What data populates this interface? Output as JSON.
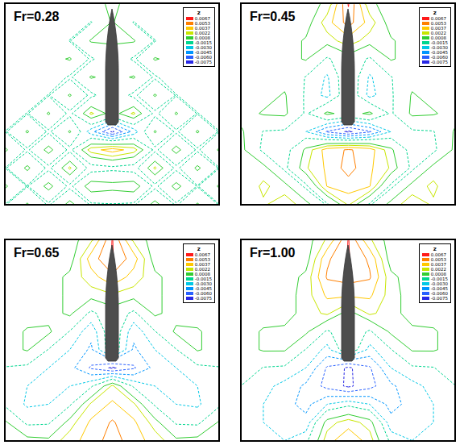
{
  "chart_data": [
    {
      "type": "contour",
      "title": "Fr=0.28",
      "legend_title": "z",
      "legend": "top-right",
      "tick_labels": false,
      "levels": [
        0.0067,
        0.0053,
        0.0037,
        0.0022,
        0.0008,
        -0.0015,
        {
          "value": -0.003,
          "label": "-0.0030"
        },
        -0.0045,
        {
          "value": -0.006,
          "label": "-0.0060"
        },
        -0.0075
      ],
      "colors": [
        "#ff1a1a",
        "#ff8000",
        "#ffc800",
        "#c8e600",
        "#32cd32",
        "#00d68f",
        "#00c8e6",
        "#0096ff",
        "#2860ff",
        "#2828e6"
      ],
      "z": [
        [
          0,
          0,
          0,
          0,
          0,
          0.0012,
          0,
          0,
          0,
          0,
          0
        ],
        [
          0,
          0,
          0,
          0,
          -0.0016,
          0.001,
          -0.0016,
          0,
          0,
          0,
          0
        ],
        [
          0,
          0,
          0,
          -0.0016,
          0.001,
          0.001,
          0.001,
          -0.0016,
          0,
          0,
          0
        ],
        [
          0,
          0,
          0,
          0.001,
          -0.0018,
          0,
          -0.0018,
          0.001,
          0,
          0,
          0
        ],
        [
          0,
          0,
          0,
          -0.0018,
          0.001,
          0,
          0.001,
          -0.0018,
          0,
          0,
          0
        ],
        [
          0,
          0,
          -0.0016,
          0.001,
          -0.002,
          0,
          -0.002,
          0.001,
          -0.0016,
          0,
          0
        ],
        [
          0,
          -0.0016,
          0.001,
          -0.002,
          0.0025,
          0,
          0.0025,
          -0.002,
          0.001,
          -0.0016,
          0
        ],
        [
          -0.0016,
          0.001,
          -0.0018,
          0.001,
          -0.004,
          -0.0078,
          -0.004,
          0.001,
          -0.0018,
          0.001,
          -0.0016
        ],
        [
          0.001,
          -0.0018,
          0.0015,
          -0.002,
          0.003,
          0.0045,
          0.003,
          -0.002,
          0.0015,
          -0.0018,
          0.001
        ],
        [
          -0.0016,
          0.0012,
          -0.002,
          0.0025,
          -0.0025,
          -0.002,
          -0.0025,
          0.0025,
          -0.002,
          0.0012,
          -0.0016
        ],
        [
          0.001,
          -0.0016,
          0.0015,
          -0.002,
          0.002,
          0.0015,
          0.002,
          -0.002,
          0.0015,
          -0.0016,
          0.001
        ],
        [
          -0.0016,
          0.001,
          -0.0018,
          0.0015,
          -0.0018,
          -0.0016,
          -0.0018,
          0.0015,
          -0.0018,
          0.001,
          -0.0016
        ]
      ]
    },
    {
      "type": "contour",
      "title": "Fr=0.45",
      "legend_title": "z",
      "legend": "top-right",
      "tick_labels": false,
      "levels": [
        0.0067,
        0.0053,
        0.0037,
        0.0022,
        0.0008,
        -0.0015,
        {
          "value": -0.003,
          "label": "-0.0030"
        },
        -0.0045,
        {
          "value": -0.006,
          "label": "-0.0060"
        },
        -0.0075
      ],
      "colors": [
        "#ff1a1a",
        "#ff8000",
        "#ffc800",
        "#c8e600",
        "#32cd32",
        "#00d68f",
        "#00c8e6",
        "#0096ff",
        "#2860ff",
        "#2828e6"
      ],
      "z": [
        [
          0,
          0,
          0,
          0,
          0.0012,
          0.0068,
          0.0012,
          0,
          0,
          0,
          0
        ],
        [
          0,
          0,
          0,
          0,
          0.003,
          0.006,
          0.003,
          0,
          0,
          0,
          0
        ],
        [
          0,
          0,
          0,
          0.001,
          0.0015,
          0.003,
          0.0015,
          0.001,
          0,
          0,
          0
        ],
        [
          0,
          0,
          0,
          0.001,
          -0.0018,
          0,
          -0.0018,
          0.001,
          0,
          0,
          0
        ],
        [
          0,
          0,
          0,
          -0.0016,
          -0.0032,
          0,
          -0.0032,
          -0.0016,
          0,
          0,
          0
        ],
        [
          0,
          0,
          0.001,
          -0.0018,
          -0.0035,
          0,
          -0.0035,
          -0.0018,
          0.001,
          0,
          0
        ],
        [
          0,
          0.001,
          0.0012,
          -0.0018,
          0.0012,
          0,
          0.0012,
          -0.0018,
          0.0012,
          0.001,
          0
        ],
        [
          0.001,
          -0.0016,
          -0.0018,
          -0.003,
          -0.0062,
          -0.0078,
          -0.0062,
          -0.003,
          -0.0018,
          -0.0016,
          0.001
        ],
        [
          0.0012,
          -0.002,
          -0.0025,
          0.0012,
          0.0045,
          0.0055,
          0.0045,
          0.0012,
          -0.0025,
          -0.002,
          0.0012
        ],
        [
          0.0012,
          0.0015,
          -0.002,
          0.002,
          0.004,
          0.006,
          0.004,
          0.002,
          -0.002,
          0.0015,
          0.0012
        ],
        [
          0.001,
          0.0025,
          0.0015,
          -0.002,
          0.0038,
          0.0045,
          0.0038,
          -0.002,
          0.0015,
          0.0025,
          0.001
        ],
        [
          0.0012,
          0.002,
          0.003,
          0.0015,
          -0.0018,
          0.0025,
          -0.0018,
          0.0015,
          0.003,
          0.002,
          0.0012
        ]
      ]
    },
    {
      "type": "contour",
      "title": "Fr=0.65",
      "legend_title": "z",
      "legend": "top-right",
      "tick_labels": false,
      "levels": [
        0.0067,
        0.0053,
        0.0037,
        0.0022,
        0.0008,
        -0.0015,
        {
          "value": -0.003,
          "label": "-0.0030"
        },
        -0.0045,
        {
          "value": -0.006,
          "label": "-0.0060"
        },
        -0.0075
      ],
      "colors": [
        "#ff1a1a",
        "#ff8000",
        "#ffc800",
        "#c8e600",
        "#32cd32",
        "#00d68f",
        "#00c8e6",
        "#0096ff",
        "#2860ff",
        "#2828e6"
      ],
      "z": [
        [
          0,
          0,
          0,
          0,
          0.002,
          0.0068,
          0.002,
          0,
          0,
          0,
          0
        ],
        [
          0,
          0,
          0,
          0,
          0.0045,
          0.0068,
          0.0045,
          0,
          0,
          0,
          0
        ],
        [
          0,
          0,
          0,
          0.0012,
          0.003,
          0.005,
          0.003,
          0.0012,
          0,
          0,
          0
        ],
        [
          0,
          0,
          0,
          0.0012,
          0.0015,
          0.002,
          0.0015,
          0.0012,
          0,
          0,
          0
        ],
        [
          0,
          0,
          0,
          0.0012,
          -0.002,
          0,
          -0.002,
          0.0012,
          0,
          0,
          0
        ],
        [
          0,
          0.001,
          0.0012,
          -0.0016,
          -0.004,
          0,
          -0.004,
          -0.0016,
          0.0012,
          0.001,
          0
        ],
        [
          0,
          0.001,
          -0.0016,
          -0.003,
          -0.0048,
          0,
          -0.0048,
          -0.003,
          -0.0016,
          0.001,
          0
        ],
        [
          -0.0016,
          -0.002,
          -0.003,
          -0.004,
          -0.0062,
          -0.0078,
          -0.0062,
          -0.004,
          -0.003,
          -0.002,
          -0.0016
        ],
        [
          -0.0025,
          -0.003,
          -0.0035,
          -0.003,
          -0.0018,
          0.0025,
          -0.0018,
          -0.003,
          -0.0035,
          -0.003,
          -0.0025
        ],
        [
          -0.002,
          -0.0032,
          -0.003,
          -0.0018,
          0.0025,
          0.004,
          0.0025,
          -0.0018,
          -0.003,
          -0.0032,
          -0.002
        ],
        [
          0.001,
          -0.002,
          -0.0018,
          0.0015,
          0.004,
          0.0055,
          0.004,
          0.0015,
          -0.0018,
          -0.002,
          0.001
        ],
        [
          0.0012,
          0.0015,
          0.0012,
          0.003,
          0.0045,
          0.006,
          0.0045,
          0.003,
          0.0012,
          0.0015,
          0.0012
        ]
      ]
    },
    {
      "type": "contour",
      "title": "Fr=1.00",
      "legend_title": "z",
      "legend": "top-right",
      "tick_labels": false,
      "levels": [
        0.0067,
        0.0053,
        0.0037,
        0.0022,
        0.0008,
        -0.0015,
        {
          "value": -0.003,
          "label": "-0.0030"
        },
        -0.0045,
        {
          "value": -0.006,
          "label": "-0.0060"
        },
        -0.0075
      ],
      "colors": [
        "#ff1a1a",
        "#ff8000",
        "#ffc800",
        "#c8e600",
        "#32cd32",
        "#00d68f",
        "#00c8e6",
        "#0096ff",
        "#2860ff",
        "#2828e6"
      ],
      "z": [
        [
          0,
          0,
          0,
          0,
          0.0025,
          0.0068,
          0.0025,
          0,
          0,
          0,
          0
        ],
        [
          0,
          0,
          0,
          0,
          0.005,
          0.0068,
          0.005,
          0,
          0,
          0,
          0
        ],
        [
          0,
          0,
          0,
          0.0012,
          0.0055,
          0.006,
          0.0055,
          0.0012,
          0,
          0,
          0
        ],
        [
          0,
          0,
          0,
          0.0015,
          0.004,
          0.004,
          0.004,
          0.0015,
          0,
          0,
          0
        ],
        [
          0,
          0,
          0,
          0.0015,
          0.0025,
          0,
          0.0025,
          0.0015,
          0,
          0,
          0
        ],
        [
          0,
          0.001,
          0.0012,
          0.0012,
          -0.0018,
          0,
          -0.0018,
          0.0012,
          0.0012,
          0.001,
          0
        ],
        [
          0,
          0.001,
          0.001,
          -0.0016,
          -0.0035,
          0,
          -0.0035,
          -0.0016,
          0.001,
          0.001,
          0
        ],
        [
          0,
          -0.0016,
          -0.0018,
          -0.003,
          -0.0062,
          -0.0078,
          -0.0062,
          -0.003,
          -0.0018,
          -0.0016,
          0
        ],
        [
          -0.0016,
          -0.0025,
          -0.0035,
          -0.0048,
          -0.0065,
          -0.0078,
          -0.0065,
          -0.0048,
          -0.0035,
          -0.0025,
          -0.0016
        ],
        [
          -0.002,
          -0.003,
          -0.004,
          -0.005,
          -0.003,
          -0.002,
          -0.003,
          -0.005,
          -0.004,
          -0.003,
          -0.002
        ],
        [
          -0.002,
          -0.003,
          -0.0035,
          -0.004,
          0.0015,
          0.003,
          0.0015,
          -0.004,
          -0.0035,
          -0.003,
          -0.002
        ],
        [
          -0.0018,
          -0.0025,
          -0.003,
          -0.002,
          0.003,
          0.005,
          0.003,
          -0.002,
          -0.003,
          -0.0025,
          -0.0018
        ]
      ]
    }
  ]
}
